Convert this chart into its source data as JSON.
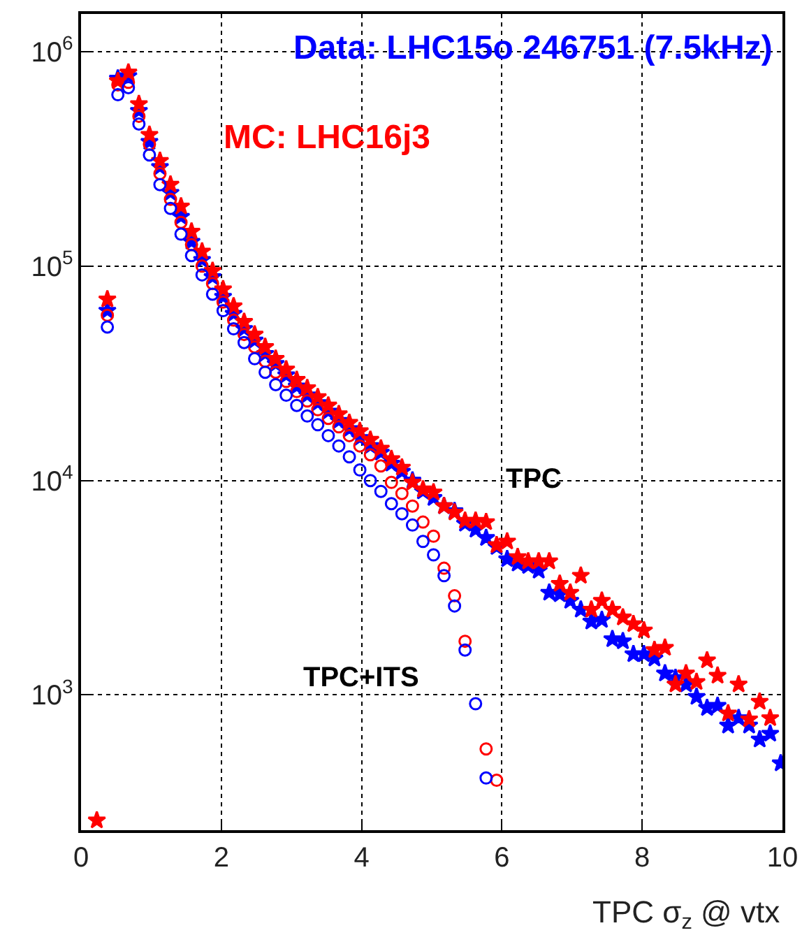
{
  "chart_data": {
    "type": "scatter",
    "xlabel": "TPC σ$_{z}$ @ vtx",
    "x": [
      0.225,
      0.375,
      0.525,
      0.675,
      0.825,
      0.975,
      1.125,
      1.275,
      1.425,
      1.575,
      1.725,
      1.875,
      2.025,
      2.175,
      2.325,
      2.475,
      2.625,
      2.775,
      2.925,
      3.075,
      3.225,
      3.375,
      3.525,
      3.675,
      3.825,
      3.975,
      4.125,
      4.275,
      4.425,
      4.575,
      4.725,
      4.875,
      5.025,
      5.175,
      5.325,
      5.475,
      5.625,
      5.775,
      5.925,
      6.075,
      6.225,
      6.375,
      6.525,
      6.675,
      6.825,
      6.975,
      7.125,
      7.275,
      7.425,
      7.575,
      7.725,
      7.875,
      8.025,
      8.175,
      8.325,
      8.475,
      8.625,
      8.775,
      8.925,
      9.075,
      9.225,
      9.375,
      9.525,
      9.675,
      9.825,
      9.975
    ],
    "series": [
      {
        "color": "#0000ff",
        "marker": "star",
        "values": [
          null,
          62000,
          750000,
          770000,
          530000,
          380000,
          290000,
          220000,
          170000,
          130000,
          107000,
          89000,
          72000,
          60000,
          51000,
          45000,
          39000,
          35000,
          31000,
          27500,
          25000,
          23000,
          21000,
          19000,
          17400,
          15800,
          14500,
          13500,
          12000,
          11000,
          10000,
          8900,
          8300,
          7600,
          7200,
          6300,
          5900,
          5400,
          4900,
          4300,
          4100,
          4000,
          3800,
          3000,
          2950,
          2750,
          2500,
          2200,
          2240,
          1820,
          1780,
          1550,
          1550,
          1480,
          1260,
          1200,
          1120,
          980,
          870,
          890,
          720,
          780,
          720,
          620,
          660,
          480
        ]
      },
      {
        "color": "#ff0000",
        "marker": "star",
        "values": [
          260,
          70000,
          730000,
          800000,
          570000,
          410000,
          310000,
          240000,
          190000,
          145000,
          117000,
          95000,
          78000,
          65000,
          55000,
          48000,
          42000,
          37000,
          33000,
          29500,
          27000,
          24500,
          22400,
          20400,
          18600,
          17000,
          15500,
          14100,
          12600,
          11500,
          9800,
          9100,
          8800,
          7600,
          7100,
          6500,
          6500,
          6400,
          5000,
          5200,
          4400,
          4200,
          4200,
          4200,
          3300,
          3000,
          3600,
          2500,
          2750,
          2500,
          2300,
          2140,
          2000,
          1620,
          1660,
          1120,
          1260,
          1150,
          1450,
          1230,
          820,
          1120,
          770,
          930,
          780,
          null
        ]
      },
      {
        "color": "#ff0000",
        "marker": "circle",
        "values": [
          null,
          59000,
          700000,
          720000,
          500000,
          370000,
          270000,
          205000,
          160000,
          126000,
          100000,
          83000,
          68000,
          56000,
          48000,
          42000,
          36000,
          32000,
          29000,
          26000,
          23500,
          21400,
          19500,
          17800,
          16200,
          14500,
          13200,
          11700,
          9800,
          8700,
          7600,
          6400,
          5500,
          3900,
          2900,
          1780,
          null,
          560,
          400,
          null,
          null,
          null,
          null,
          null,
          null,
          null,
          null,
          null,
          null,
          null,
          null,
          null,
          null,
          null,
          null,
          null,
          null,
          null,
          null,
          null,
          null,
          null,
          null,
          null,
          null,
          null
        ]
      },
      {
        "color": "#0000ff",
        "marker": "circle",
        "values": [
          null,
          52000,
          630000,
          680000,
          460000,
          330000,
          240000,
          186000,
          141000,
          112000,
          91000,
          74000,
          62000,
          51000,
          44000,
          37000,
          32000,
          28000,
          25000,
          22400,
          20000,
          18200,
          16200,
          14500,
          12900,
          11200,
          10000,
          8900,
          7800,
          7000,
          6200,
          5200,
          4500,
          3600,
          2600,
          1620,
          910,
          410,
          null,
          null,
          null,
          null,
          null,
          null,
          null,
          null,
          null,
          null,
          null,
          null,
          null,
          null,
          null,
          null,
          null,
          null,
          null,
          null,
          null,
          null,
          null,
          null,
          null,
          null,
          null,
          null
        ]
      }
    ],
    "annotations": [
      "Data: LHC15o 246751 (7.5kHz)",
      "MC: LHC16j3",
      "TPC",
      "TPC+ITS"
    ],
    "log": "y",
    "xlim": [
      0,
      10
    ],
    "xticks": [
      0,
      2,
      4,
      6,
      8,
      10
    ],
    "ylim": [
      234,
      1500000
    ],
    "yticks": [
      {
        "value": 1000,
        "label": "10$^{3}$"
      },
      {
        "value": 10000,
        "label": "10$^{4}$"
      },
      {
        "value": 100000,
        "label": "10$^{5}$"
      },
      {
        "value": 1000000,
        "label": "10$^{6}$"
      }
    ],
    "grid": true
  }
}
